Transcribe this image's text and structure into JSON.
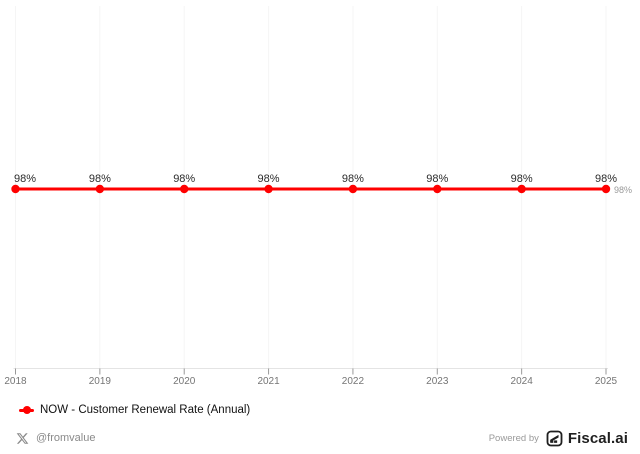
{
  "chart_data": {
    "type": "line",
    "title": "",
    "xlabel": "",
    "ylabel": "",
    "x": [
      2018,
      2019,
      2020,
      2021,
      2022,
      2023,
      2024,
      2025
    ],
    "series": [
      {
        "name": "NOW - Customer Renewal Rate (Annual)",
        "values": [
          98,
          98,
          98,
          98,
          98,
          98,
          98,
          98
        ],
        "unit": "%",
        "color": "#ff0000",
        "point_labels": [
          "98%",
          "98%",
          "98%",
          "98%",
          "98%",
          "98%",
          "98%",
          "98%"
        ],
        "last_value_label": "98%"
      }
    ],
    "grid": "vertical-faint",
    "legend_position": "bottom-left",
    "y_axis_visible": false
  },
  "legend": {
    "items": [
      {
        "label": "NOW - Customer Renewal Rate (Annual)",
        "marker": "line-dot",
        "color": "#ff0000"
      }
    ]
  },
  "footer": {
    "social_icon": "x-logo-icon",
    "handle": "@fromvalue",
    "powered_by": "Powered by",
    "brand_icon": "fiscal-ai-logo-icon",
    "brand": "Fiscal.ai"
  },
  "colors": {
    "series": "#ff0000",
    "point_label": "#2b2b2b",
    "last_value_label": "#999999",
    "gridline": "#f5f5f5",
    "axis_line": "#e4e4e4",
    "tick": "#999999",
    "tick_label": "#757575",
    "footer_text": "#8a8a8a",
    "brand_text": "#1f1f1f"
  }
}
